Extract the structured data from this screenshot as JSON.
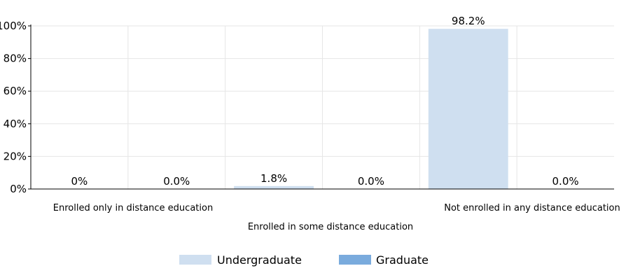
{
  "chart_data": {
    "type": "bar",
    "categories": [
      "Enrolled only in distance education",
      "Enrolled in some distance education",
      "Not enrolled in any distance education"
    ],
    "series": [
      {
        "name": "Undergraduate",
        "values": [
          0,
          1.8,
          98.2
        ],
        "labels": [
          "0%",
          "1.8%",
          "98.2%"
        ],
        "color": "#cfdff0"
      },
      {
        "name": "Graduate",
        "values": [
          0,
          0,
          0
        ],
        "labels": [
          "0.0%",
          "0.0%",
          "0.0%"
        ],
        "color": "#7aabdd"
      }
    ],
    "yticks": [
      "0%",
      "20%",
      "40%",
      "60%",
      "80%",
      "100%"
    ],
    "ylim": [
      0,
      100
    ],
    "grid": true,
    "legend_position": "bottom-center"
  }
}
